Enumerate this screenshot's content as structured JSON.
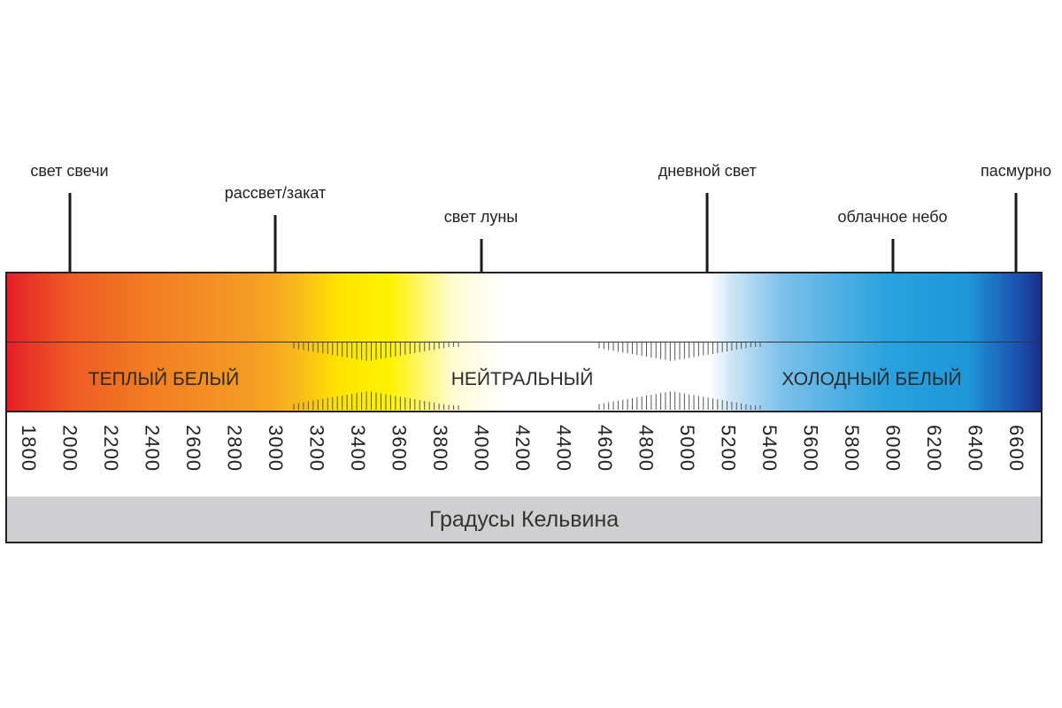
{
  "markers": [
    {
      "label": "свет свечи",
      "kelvin": 2000
    },
    {
      "label": "рассвет/закат",
      "kelvin": 3000
    },
    {
      "label": "свет луны",
      "kelvin": 4000
    },
    {
      "label": "дневной свет",
      "kelvin": 5100
    },
    {
      "label": "облачное небо",
      "kelvin": 6000
    },
    {
      "label": "пасмурно",
      "kelvin": 6600
    }
  ],
  "zones": [
    "ТЕПЛЫЙ БЕЛЫЙ",
    "НЕЙТРАЛЬНЫЙ",
    "ХОЛОДНЫЙ БЕЛЫЙ"
  ],
  "scale": [
    "1800",
    "2000",
    "2200",
    "2400",
    "2600",
    "2800",
    "3000",
    "3200",
    "3400",
    "3600",
    "3800",
    "4000",
    "4200",
    "4400",
    "4600",
    "4800",
    "5000",
    "5200",
    "5400",
    "5600",
    "5800",
    "6000",
    "6200",
    "6400",
    "6600"
  ],
  "axis_title": "Градусы Кельвина",
  "colors": {
    "warm": "#e51f2a",
    "yellow": "#fff200",
    "neutral": "#ffffff",
    "cool": "#1e96d8",
    "deep_blue": "#1a2f8a"
  }
}
